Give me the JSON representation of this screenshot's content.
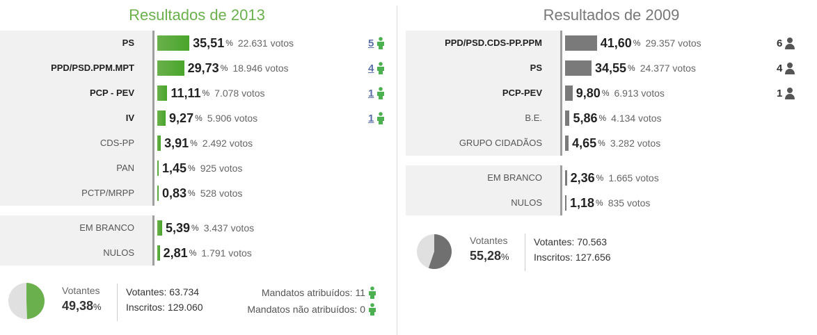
{
  "y2013": {
    "title": "Resultados de 2013",
    "parties": [
      {
        "name": "PS",
        "pct": "35,51",
        "votes": "22.631 votos",
        "seats": "5",
        "share": 35.51
      },
      {
        "name": "PPD/PSD.PPM.MPT",
        "pct": "29,73",
        "votes": "18.946 votos",
        "seats": "4",
        "share": 29.73
      },
      {
        "name": "PCP - PEV",
        "pct": "11,11",
        "votes": "7.078 votos",
        "seats": "1",
        "share": 11.11
      },
      {
        "name": "IV",
        "pct": "9,27",
        "votes": "5.906 votos",
        "seats": "1",
        "share": 9.27
      },
      {
        "name": "CDS-PP",
        "pct": "3,91",
        "votes": "2.492 votos",
        "share": 3.91
      },
      {
        "name": "PAN",
        "pct": "1,45",
        "votes": "925 votos",
        "share": 1.45
      },
      {
        "name": "PCTP/MRPP",
        "pct": "0,83",
        "votes": "528 votos",
        "share": 0.83
      }
    ],
    "other": [
      {
        "name": "EM BRANCO",
        "pct": "5,39",
        "votes": "3.437 votos",
        "share": 5.39
      },
      {
        "name": "NULOS",
        "pct": "2,81",
        "votes": "1.791 votos",
        "share": 2.81
      }
    ],
    "turnout_label": "Votantes",
    "turnout_pct": "49,38",
    "turnout_share": 0.4938,
    "voters": "Votantes: 63.734",
    "registered": "Inscritos: 129.060",
    "seats_assigned": "Mandatos atribuídos: 11",
    "seats_unassigned": "Mandatos não atribuídos: 0"
  },
  "y2009": {
    "title": "Resultados de 2009",
    "parties": [
      {
        "name": "PPD/PSD.CDS-PP.PPM",
        "pct": "41,60",
        "votes": "29.357 votos",
        "seats": "6",
        "share": 41.6
      },
      {
        "name": "PS",
        "pct": "34,55",
        "votes": "24.377 votos",
        "seats": "4",
        "share": 34.55
      },
      {
        "name": "PCP-PEV",
        "pct": "9,80",
        "votes": "6.913 votos",
        "seats": "1",
        "share": 9.8
      },
      {
        "name": "B.E.",
        "pct": "5,86",
        "votes": "4.134 votos",
        "share": 5.86
      },
      {
        "name": "GRUPO CIDADÃOS",
        "pct": "4,65",
        "votes": "3.282 votos",
        "share": 4.65
      }
    ],
    "other": [
      {
        "name": "EM BRANCO",
        "pct": "2,36",
        "votes": "1.665 votos",
        "share": 2.36
      },
      {
        "name": "NULOS",
        "pct": "1,18",
        "votes": "835 votos",
        "share": 1.18
      }
    ],
    "turnout_label": "Votantes",
    "turnout_pct": "55,28",
    "turnout_share": 0.5528,
    "voters": "Votantes: 70.563",
    "registered": "Inscritos: 127.656"
  },
  "pct_sign": "%",
  "colors": {
    "green": "#6ab04c",
    "gray_bar": "#7a7a7a",
    "pie_bg": "#e0e0e0",
    "seat_link": "#5a6fa8"
  },
  "icons": {
    "seat_green": "person-green-icon",
    "seat_gray": "person-gray-icon"
  }
}
